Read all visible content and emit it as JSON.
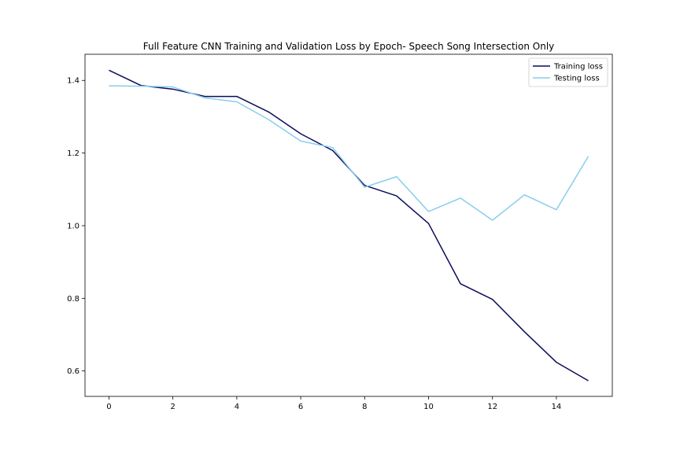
{
  "chart_data": {
    "type": "line",
    "title": "Full Feature CNN Training and Validation Loss by Epoch- Speech Song Intersection Only",
    "xlabel": "",
    "ylabel": "",
    "x": [
      0,
      1,
      2,
      3,
      4,
      5,
      6,
      7,
      8,
      9,
      10,
      11,
      12,
      13,
      14,
      15
    ],
    "xlim": [
      -0.75,
      15.75
    ],
    "ylim": [
      0.53,
      1.472
    ],
    "xticks": [
      0,
      2,
      4,
      6,
      8,
      10,
      12,
      14
    ],
    "yticks": [
      0.6,
      0.8,
      1.0,
      1.2,
      1.4
    ],
    "grid": false,
    "legend_position": "top-right",
    "series": [
      {
        "name": "Training loss",
        "color": "#0b0b5c",
        "values": [
          1.428,
          1.386,
          1.376,
          1.356,
          1.356,
          1.313,
          1.253,
          1.207,
          1.111,
          1.082,
          1.006,
          0.84,
          0.797,
          0.708,
          0.624,
          0.573
        ]
      },
      {
        "name": "Testing loss",
        "color": "#87ceeb",
        "values": [
          1.385,
          1.384,
          1.382,
          1.352,
          1.341,
          1.292,
          1.233,
          1.215,
          1.106,
          1.135,
          1.039,
          1.076,
          1.015,
          1.085,
          1.044,
          1.191
        ]
      }
    ]
  }
}
